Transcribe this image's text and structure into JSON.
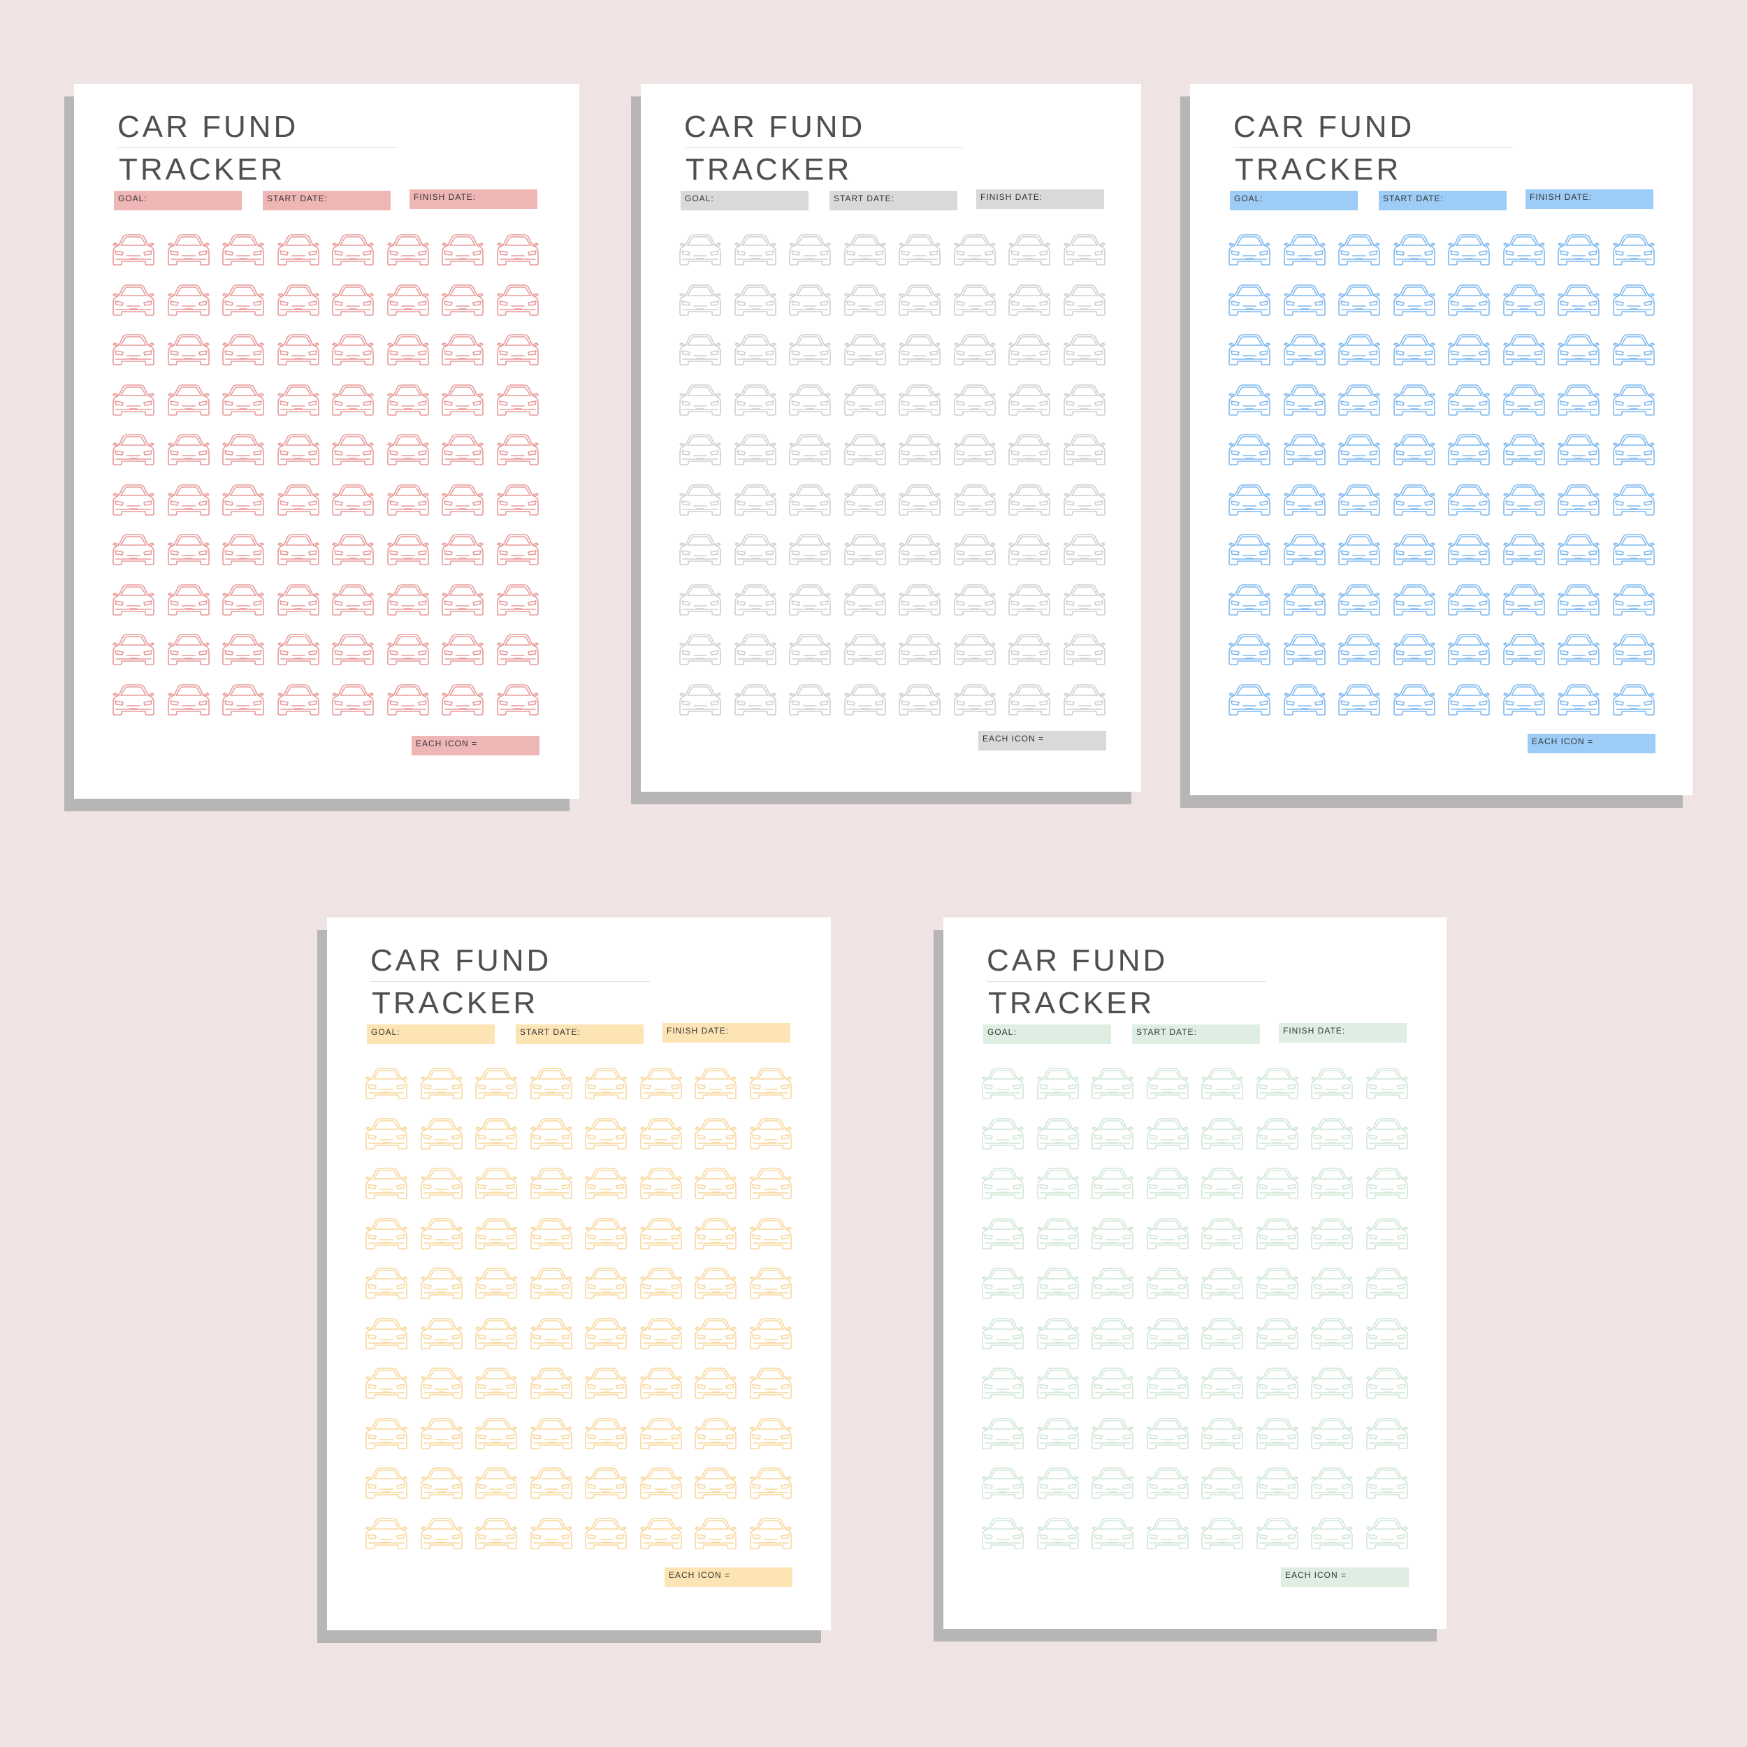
{
  "sheets": [
    {
      "id": "pink",
      "title_line1": "CAR FUND",
      "title_line2": "TRACKER",
      "goal_label": "GOAL:",
      "start_label": "START DATE:",
      "finish_label": "FINISH DATE:",
      "each_icon_label": "EACH ICON =",
      "accent_color": "#efb6b6",
      "icon_color": "#e89a9a",
      "icon_name": "car-icon",
      "rows": 10,
      "columns": 8
    },
    {
      "id": "gray",
      "title_line1": "CAR FUND",
      "title_line2": "TRACKER",
      "goal_label": "GOAL:",
      "start_label": "START DATE:",
      "finish_label": "FINISH DATE:",
      "each_icon_label": "EACH ICON =",
      "accent_color": "#d9d9d9",
      "icon_color": "#cfcfcf",
      "icon_name": "car-icon",
      "rows": 10,
      "columns": 8
    },
    {
      "id": "blue",
      "title_line1": "CAR FUND",
      "title_line2": "TRACKER",
      "goal_label": "GOAL:",
      "start_label": "START DATE:",
      "finish_label": "FINISH DATE:",
      "each_icon_label": "EACH ICON =",
      "accent_color": "#9dccf7",
      "icon_color": "#7fb9ef",
      "icon_name": "car-icon",
      "rows": 10,
      "columns": 8
    },
    {
      "id": "yellow",
      "title_line1": "CAR FUND",
      "title_line2": "TRACKER",
      "goal_label": "GOAL:",
      "start_label": "START DATE:",
      "finish_label": "FINISH DATE:",
      "each_icon_label": "EACH ICON =",
      "accent_color": "#fde4b4",
      "icon_color": "#f8d79c",
      "icon_name": "car-icon",
      "rows": 10,
      "columns": 8
    },
    {
      "id": "green",
      "title_line1": "CAR FUND",
      "title_line2": "TRACKER",
      "goal_label": "GOAL:",
      "start_label": "START DATE:",
      "finish_label": "FINISH DATE:",
      "each_icon_label": "EACH ICON =",
      "accent_color": "#deeee2",
      "icon_color": "#cfe6d5",
      "icon_name": "car-icon",
      "rows": 10,
      "columns": 8
    }
  ]
}
